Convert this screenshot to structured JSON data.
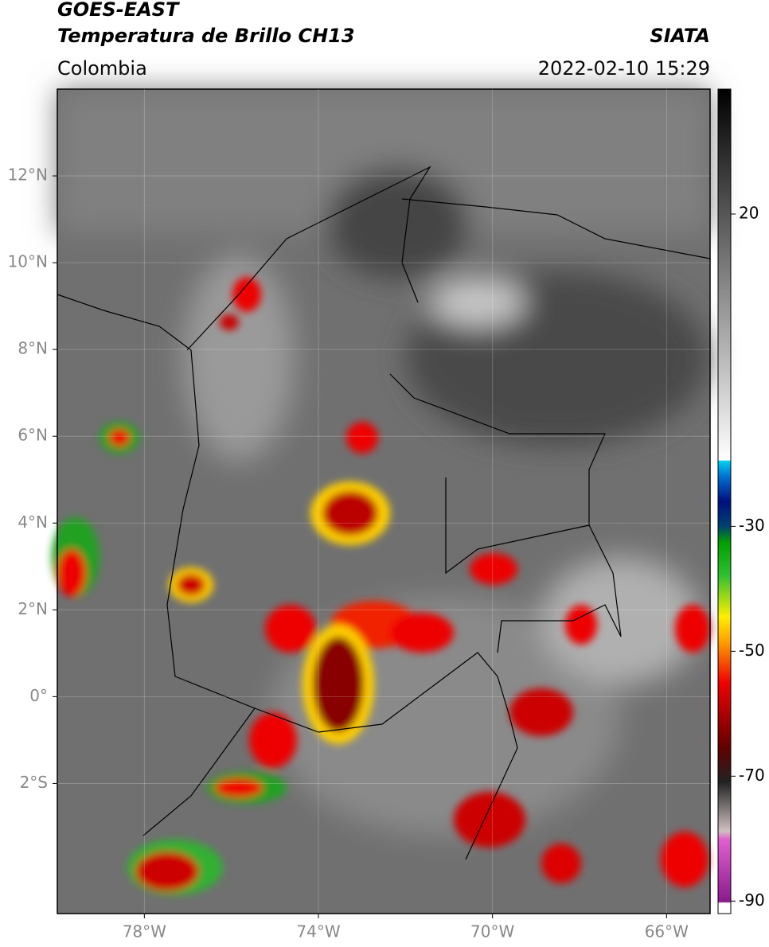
{
  "header": {
    "title": "GOES-EAST",
    "subtitle": "Temperatura de Brillo CH13",
    "region": "Colombia",
    "source": "SIATA",
    "datetime": "2022-02-10 15:29"
  },
  "map": {
    "xlim": [
      -80,
      -65
    ],
    "ylim": [
      -5,
      14
    ],
    "xticks": [
      {
        "value": -78,
        "label": "78°W"
      },
      {
        "value": -74,
        "label": "74°W"
      },
      {
        "value": -70,
        "label": "70°W"
      },
      {
        "value": -66,
        "label": "66°W"
      }
    ],
    "yticks": [
      {
        "value": 12,
        "label": "12°N"
      },
      {
        "value": 10,
        "label": "10°N"
      },
      {
        "value": 8,
        "label": "8°N"
      },
      {
        "value": 6,
        "label": "6°N"
      },
      {
        "value": 4,
        "label": "4°N"
      },
      {
        "value": 2,
        "label": "2°N"
      },
      {
        "value": 0,
        "label": "0°"
      },
      {
        "value": -2,
        "label": "2°S"
      }
    ],
    "grid": true
  },
  "colorbar": {
    "lim": [
      -92,
      40
    ],
    "ticks": [
      20,
      -30,
      -50,
      -70,
      -90
    ]
  }
}
